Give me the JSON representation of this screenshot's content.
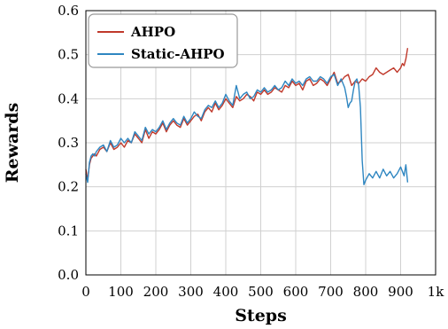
{
  "chart_data": {
    "type": "line",
    "xlabel": "Steps",
    "ylabel": "Rewards",
    "xlim": [
      0,
      1000
    ],
    "ylim": [
      0,
      0.6
    ],
    "x_ticks": [
      0,
      100,
      200,
      300,
      400,
      500,
      600,
      700,
      800,
      900,
      1000
    ],
    "x_tick_labels": [
      "0",
      "100",
      "200",
      "300",
      "400",
      "500",
      "600",
      "700",
      "800",
      "900",
      "1k"
    ],
    "y_ticks": [
      0.0,
      0.1,
      0.2,
      0.3,
      0.4,
      0.5,
      0.6
    ],
    "y_tick_labels": [
      "0.0",
      "0.1",
      "0.2",
      "0.3",
      "0.4",
      "0.5",
      "0.6"
    ],
    "grid": true,
    "legend_position": "top-left",
    "series": [
      {
        "name": "AHPO",
        "color": "#c0392b",
        "x": [
          0,
          5,
          10,
          15,
          20,
          25,
          30,
          40,
          50,
          60,
          70,
          80,
          90,
          100,
          110,
          120,
          130,
          140,
          150,
          160,
          170,
          180,
          190,
          200,
          210,
          220,
          230,
          240,
          250,
          260,
          270,
          280,
          290,
          300,
          310,
          320,
          330,
          340,
          350,
          360,
          370,
          380,
          390,
          400,
          410,
          420,
          430,
          440,
          450,
          460,
          470,
          480,
          490,
          500,
          510,
          520,
          530,
          540,
          550,
          560,
          570,
          580,
          590,
          600,
          610,
          620,
          630,
          640,
          650,
          660,
          670,
          680,
          690,
          700,
          710,
          720,
          730,
          740,
          750,
          760,
          770,
          780,
          790,
          800,
          810,
          820,
          830,
          840,
          850,
          860,
          870,
          880,
          890,
          900,
          905,
          910,
          915,
          920
        ],
        "values": [
          0.24,
          0.215,
          0.25,
          0.265,
          0.27,
          0.275,
          0.27,
          0.285,
          0.29,
          0.28,
          0.3,
          0.285,
          0.29,
          0.3,
          0.29,
          0.305,
          0.3,
          0.32,
          0.31,
          0.3,
          0.33,
          0.31,
          0.325,
          0.32,
          0.33,
          0.345,
          0.325,
          0.34,
          0.35,
          0.34,
          0.335,
          0.355,
          0.34,
          0.35,
          0.36,
          0.365,
          0.35,
          0.37,
          0.38,
          0.37,
          0.39,
          0.375,
          0.385,
          0.4,
          0.39,
          0.38,
          0.405,
          0.395,
          0.4,
          0.41,
          0.405,
          0.395,
          0.415,
          0.41,
          0.42,
          0.41,
          0.415,
          0.425,
          0.42,
          0.415,
          0.43,
          0.425,
          0.44,
          0.43,
          0.435,
          0.42,
          0.44,
          0.445,
          0.43,
          0.435,
          0.445,
          0.44,
          0.43,
          0.445,
          0.46,
          0.435,
          0.44,
          0.45,
          0.455,
          0.43,
          0.44,
          0.435,
          0.445,
          0.44,
          0.45,
          0.455,
          0.47,
          0.46,
          0.455,
          0.46,
          0.465,
          0.47,
          0.46,
          0.47,
          0.48,
          0.475,
          0.49,
          0.515
        ]
      },
      {
        "name": "Static-AHPO",
        "color": "#2e86c1",
        "x": [
          0,
          5,
          10,
          15,
          20,
          25,
          30,
          40,
          50,
          60,
          70,
          80,
          90,
          100,
          110,
          120,
          130,
          140,
          150,
          160,
          170,
          180,
          190,
          200,
          210,
          220,
          230,
          240,
          250,
          260,
          270,
          280,
          290,
          300,
          310,
          320,
          330,
          340,
          350,
          360,
          370,
          380,
          390,
          400,
          410,
          420,
          430,
          440,
          450,
          460,
          470,
          480,
          490,
          500,
          510,
          520,
          530,
          540,
          550,
          560,
          570,
          580,
          590,
          600,
          610,
          620,
          630,
          640,
          650,
          660,
          670,
          680,
          690,
          700,
          710,
          720,
          730,
          740,
          745,
          750,
          755,
          760,
          765,
          770,
          775,
          780,
          785,
          790,
          795,
          800,
          810,
          820,
          830,
          840,
          850,
          860,
          870,
          880,
          890,
          900,
          910,
          915,
          920
        ],
        "values": [
          0.23,
          0.21,
          0.255,
          0.27,
          0.275,
          0.27,
          0.28,
          0.29,
          0.295,
          0.28,
          0.305,
          0.29,
          0.295,
          0.31,
          0.3,
          0.31,
          0.3,
          0.325,
          0.315,
          0.305,
          0.335,
          0.32,
          0.33,
          0.325,
          0.335,
          0.35,
          0.33,
          0.345,
          0.355,
          0.345,
          0.34,
          0.36,
          0.345,
          0.355,
          0.37,
          0.36,
          0.355,
          0.375,
          0.385,
          0.38,
          0.395,
          0.38,
          0.39,
          0.41,
          0.395,
          0.385,
          0.43,
          0.4,
          0.41,
          0.415,
          0.4,
          0.405,
          0.42,
          0.415,
          0.425,
          0.415,
          0.42,
          0.43,
          0.42,
          0.425,
          0.44,
          0.43,
          0.445,
          0.435,
          0.44,
          0.43,
          0.445,
          0.45,
          0.44,
          0.44,
          0.45,
          0.445,
          0.435,
          0.45,
          0.455,
          0.43,
          0.445,
          0.425,
          0.405,
          0.38,
          0.39,
          0.395,
          0.42,
          0.44,
          0.445,
          0.43,
          0.38,
          0.26,
          0.205,
          0.215,
          0.23,
          0.22,
          0.235,
          0.22,
          0.24,
          0.225,
          0.235,
          0.22,
          0.23,
          0.245,
          0.225,
          0.25,
          0.21
        ]
      }
    ]
  }
}
